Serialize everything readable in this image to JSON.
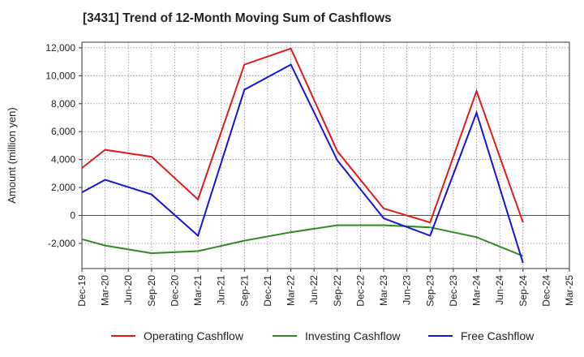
{
  "title": "[3431]  Trend of 12-Month Moving Sum of Cashflows",
  "chart_data": {
    "type": "line",
    "title": "[3431]  Trend of 12-Month Moving Sum of Cashflows",
    "xlabel": "",
    "ylabel": "Amount (million yen)",
    "ylim": [
      -3800,
      12400
    ],
    "yticks": [
      -2000,
      0,
      2000,
      4000,
      6000,
      8000,
      10000,
      12000
    ],
    "ytick_labels": [
      "-2,000",
      "0",
      "2,000",
      "4,000",
      "6,000",
      "8,000",
      "10,000",
      "12,000"
    ],
    "categories": [
      "Dec-19",
      "Mar-20",
      "Jun-20",
      "Sep-20",
      "Dec-20",
      "Mar-21",
      "Jun-21",
      "Sep-21",
      "Dec-21",
      "Mar-22",
      "Jun-22",
      "Sep-22",
      "Dec-22",
      "Mar-23",
      "Jun-23",
      "Sep-23",
      "Dec-23",
      "Mar-24",
      "Jun-24",
      "Sep-24",
      "Dec-24",
      "Mar-25"
    ],
    "grid": true,
    "legend_position": "bottom",
    "series": [
      {
        "name": "Operating Cashflow",
        "color": "#e31a1c",
        "values": [
          3400,
          4700,
          null,
          4200,
          null,
          1150,
          null,
          10800,
          null,
          11950,
          null,
          4600,
          null,
          500,
          null,
          -500,
          null,
          8900,
          null,
          -500,
          null,
          null
        ]
      },
      {
        "name": "Investing Cashflow",
        "color": "#2e8b22",
        "values": [
          -1700,
          -2150,
          null,
          -2700,
          null,
          -2550,
          null,
          -1800,
          null,
          -1200,
          null,
          -700,
          null,
          -700,
          null,
          -850,
          null,
          -1550,
          null,
          -2900,
          null,
          null
        ]
      },
      {
        "name": "Free Cashflow",
        "color": "#1515d6",
        "values": [
          1650,
          2550,
          null,
          1500,
          null,
          -1450,
          null,
          9000,
          null,
          10800,
          null,
          3950,
          null,
          -200,
          null,
          -1450,
          null,
          7350,
          null,
          -3400,
          null,
          null
        ]
      }
    ]
  }
}
